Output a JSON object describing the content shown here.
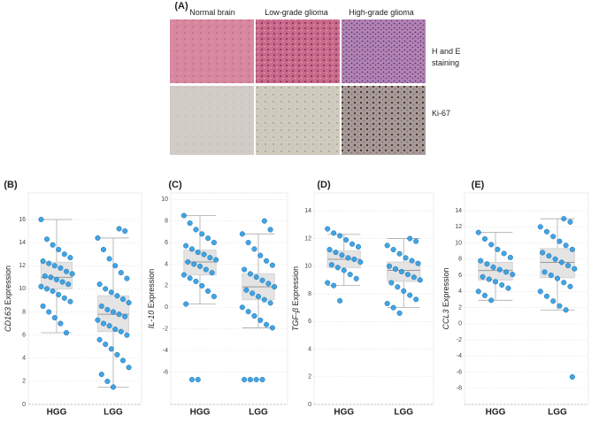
{
  "panel_a": {
    "label": "(A)",
    "columns": [
      "Normal brain",
      "Low-grade glioma",
      "High-grade glioma"
    ],
    "rows": [
      [
        "H and E",
        "staining"
      ],
      [
        "Ki-67"
      ]
    ]
  },
  "chart_data": [
    {
      "type": "box_scatter",
      "panel": "(B)",
      "ylabel": {
        "gene": "CD163",
        "text": "Expression"
      },
      "categories": [
        "HGG",
        "LGG"
      ],
      "ylim": [
        0,
        18.3
      ],
      "yticks": [
        0,
        2,
        4,
        6,
        8,
        10,
        12,
        14,
        16
      ],
      "grid": true,
      "color": "#2f9be0",
      "boxes": [
        {
          "whisker_low": 6.2,
          "q1": 10.0,
          "median": 11.0,
          "q3": 12.3,
          "whisker_high": 16.0
        },
        {
          "whisker_low": 1.5,
          "q1": 6.3,
          "median": 7.8,
          "q3": 9.4,
          "whisker_high": 14.4
        }
      ],
      "points": [
        [
          16.0,
          14.3,
          13.8,
          13.4,
          13.0,
          12.7,
          12.4,
          12.2,
          12.0,
          11.8,
          11.5,
          11.3,
          11.1,
          11.0,
          10.8,
          10.6,
          10.4,
          10.2,
          10.0,
          9.8,
          9.5,
          9.2,
          8.9,
          8.5,
          8.0,
          7.5,
          7.0,
          6.2
        ],
        [
          15.2,
          15.0,
          14.4,
          13.4,
          12.6,
          12.0,
          11.4,
          10.9,
          10.4,
          10.0,
          9.7,
          9.4,
          9.1,
          8.8,
          8.5,
          8.2,
          8.0,
          7.8,
          7.6,
          7.3,
          7.0,
          6.8,
          6.5,
          6.3,
          6.0,
          5.6,
          5.2,
          4.8,
          4.3,
          3.8,
          3.2,
          2.6,
          2.0,
          1.5
        ]
      ]
    },
    {
      "type": "box_scatter",
      "panel": "(C)",
      "ylabel": {
        "gene": "IL-10",
        "text": "Expression"
      },
      "categories": [
        "HGG",
        "LGG"
      ],
      "ylim": [
        -9,
        10.6
      ],
      "yticks": [
        -6,
        -4,
        -2,
        0,
        2,
        4,
        6,
        8,
        10
      ],
      "grid": true,
      "color": "#2f9be0",
      "boxes": [
        {
          "whisker_low": 0.3,
          "q1": 3.0,
          "median": 4.2,
          "q3": 5.3,
          "whisker_high": 8.5
        },
        {
          "whisker_low": -1.9,
          "q1": 0.7,
          "median": 1.9,
          "q3": 3.1,
          "whisker_high": 6.8
        }
      ],
      "points": [
        [
          8.5,
          7.8,
          7.2,
          6.8,
          6.4,
          6.0,
          5.7,
          5.4,
          5.1,
          4.9,
          4.6,
          4.4,
          4.2,
          4.0,
          3.8,
          3.5,
          3.2,
          3.0,
          2.7,
          2.4,
          2.0,
          1.5,
          1.0,
          0.3,
          -6.7,
          -6.7
        ],
        [
          8.0,
          7.2,
          6.8,
          6.0,
          5.4,
          4.8,
          4.3,
          3.9,
          3.5,
          3.1,
          2.8,
          2.5,
          2.2,
          1.9,
          1.6,
          1.3,
          1.0,
          0.7,
          0.4,
          0.0,
          -0.4,
          -0.8,
          -1.2,
          -1.6,
          -1.9,
          -6.7,
          -6.7,
          -6.7,
          -6.7
        ]
      ]
    },
    {
      "type": "box_scatter",
      "panel": "(D)",
      "ylabel": {
        "gene": "TGF-β",
        "text": "Expression"
      },
      "categories": [
        "HGG",
        "LGG"
      ],
      "ylim": [
        0,
        15.3
      ],
      "yticks": [
        0,
        2,
        4,
        6,
        8,
        10,
        12,
        14
      ],
      "grid": true,
      "color": "#2f9be0",
      "boxes": [
        {
          "whisker_low": 8.6,
          "q1": 9.9,
          "median": 10.5,
          "q3": 11.1,
          "whisker_high": 12.3
        },
        {
          "whisker_low": 7.0,
          "q1": 8.9,
          "median": 9.7,
          "q3": 10.3,
          "whisker_high": 12.0
        }
      ],
      "points": [
        [
          12.7,
          12.4,
          12.2,
          11.9,
          11.6,
          11.4,
          11.2,
          11.0,
          10.8,
          10.6,
          10.5,
          10.3,
          10.1,
          9.9,
          9.7,
          9.4,
          9.1,
          8.8,
          8.6,
          7.5
        ],
        [
          12.0,
          11.8,
          11.5,
          11.2,
          10.9,
          10.6,
          10.4,
          10.2,
          10.0,
          9.8,
          9.6,
          9.4,
          9.2,
          9.0,
          8.8,
          8.5,
          8.2,
          7.9,
          7.6,
          7.3,
          7.0,
          6.6
        ]
      ]
    },
    {
      "type": "box_scatter",
      "panel": "(E)",
      "ylabel": {
        "gene": "CCL3",
        "text": "Expression"
      },
      "categories": [
        "HGG",
        "LGG"
      ],
      "ylim": [
        -10,
        16.2
      ],
      "yticks": [
        -8,
        -6,
        -4,
        -2,
        0,
        2,
        4,
        6,
        8,
        10,
        12,
        14
      ],
      "grid": true,
      "color": "#2f9be0",
      "boxes": [
        {
          "whisker_low": 2.9,
          "q1": 5.4,
          "median": 6.6,
          "q3": 7.6,
          "whisker_high": 11.3
        },
        {
          "whisker_low": 1.7,
          "q1": 5.7,
          "median": 7.6,
          "q3": 9.3,
          "whisker_high": 13.0
        }
      ],
      "points": [
        [
          11.3,
          10.5,
          9.8,
          9.2,
          8.7,
          8.2,
          7.8,
          7.4,
          7.0,
          6.7,
          6.4,
          6.1,
          5.8,
          5.5,
          5.2,
          4.8,
          4.4,
          4.0,
          3.5,
          2.9
        ],
        [
          13.0,
          12.6,
          12.0,
          11.4,
          10.8,
          10.2,
          9.7,
          9.2,
          8.8,
          8.4,
          8.0,
          7.6,
          7.2,
          6.8,
          6.4,
          6.0,
          5.6,
          5.1,
          4.6,
          4.0,
          3.4,
          2.8,
          2.2,
          1.7,
          -6.6
        ]
      ]
    }
  ]
}
